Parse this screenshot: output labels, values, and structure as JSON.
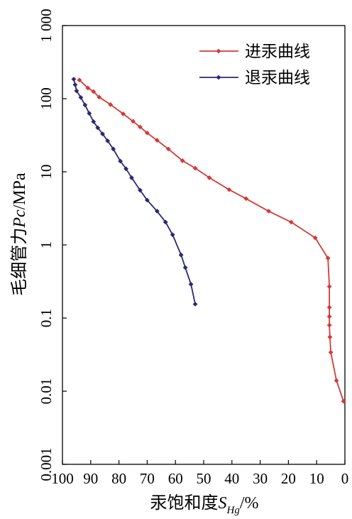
{
  "chart_data": {
    "type": "line",
    "title": "",
    "x_label_text": "汞饱和度",
    "x_label_symbol": "S",
    "x_label_subscript": "Hg",
    "x_label_unit": "/%",
    "y_label_text": "毛细管力",
    "y_label_symbol": "Pc",
    "y_label_unit": "/MPa",
    "xlim": [
      100,
      0
    ],
    "x_reversed": true,
    "ylim": [
      0.001,
      1000
    ],
    "y_scale": "log",
    "x_ticks": [
      100,
      90,
      80,
      70,
      60,
      50,
      40,
      30,
      20,
      10,
      0
    ],
    "x_tick_labels": [
      "100",
      "90",
      "80",
      "70",
      "60",
      "50",
      "40",
      "30",
      "20",
      "10",
      "0"
    ],
    "y_ticks": [
      0.001,
      0.01,
      0.1,
      1,
      10,
      100,
      1000
    ],
    "y_tick_labels": [
      "0.001",
      "0.01",
      "0.1",
      "1",
      "10",
      "100",
      "1 000"
    ],
    "grid": false,
    "legend_position": "top-right",
    "series": [
      {
        "name": "进汞曲线",
        "color": "#d43a3a",
        "marker": "diamond",
        "points": [
          [
            94,
            180
          ],
          [
            91,
            140
          ],
          [
            89,
            125
          ],
          [
            87,
            105
          ],
          [
            83,
            83
          ],
          [
            78.5,
            62
          ],
          [
            75,
            49
          ],
          [
            72.5,
            41
          ],
          [
            70,
            34
          ],
          [
            66.5,
            27
          ],
          [
            62.5,
            20.5
          ],
          [
            57.5,
            14.2
          ],
          [
            53,
            11.2
          ],
          [
            48,
            8.3
          ],
          [
            41,
            5.7
          ],
          [
            35,
            4.3
          ],
          [
            27,
            2.9
          ],
          [
            19,
            2.05
          ],
          [
            10.5,
            1.25
          ],
          [
            6,
            0.66
          ],
          [
            5.5,
            0.27
          ],
          [
            5.5,
            0.14
          ],
          [
            5.5,
            0.105
          ],
          [
            5.5,
            0.08
          ],
          [
            5.3,
            0.055
          ],
          [
            5,
            0.034
          ],
          [
            3,
            0.014
          ],
          [
            0.5,
            0.0073
          ]
        ]
      },
      {
        "name": "退汞曲线",
        "color": "#2b2a6e",
        "marker": "diamond",
        "points": [
          [
            96,
            185
          ],
          [
            95.5,
            155
          ],
          [
            95,
            128
          ],
          [
            93.5,
            104
          ],
          [
            92,
            82
          ],
          [
            90.5,
            63
          ],
          [
            89,
            48.5
          ],
          [
            87.5,
            40
          ],
          [
            85.8,
            33
          ],
          [
            84,
            26.5
          ],
          [
            82,
            20.5
          ],
          [
            79.5,
            14
          ],
          [
            77.5,
            11
          ],
          [
            75.5,
            8.3
          ],
          [
            72.5,
            5.6
          ],
          [
            70,
            4.1
          ],
          [
            66.5,
            2.9
          ],
          [
            63.5,
            2.05
          ],
          [
            61,
            1.38
          ],
          [
            58,
            0.73
          ],
          [
            56.5,
            0.49
          ],
          [
            54.5,
            0.29
          ],
          [
            53,
            0.155
          ]
        ]
      }
    ]
  }
}
